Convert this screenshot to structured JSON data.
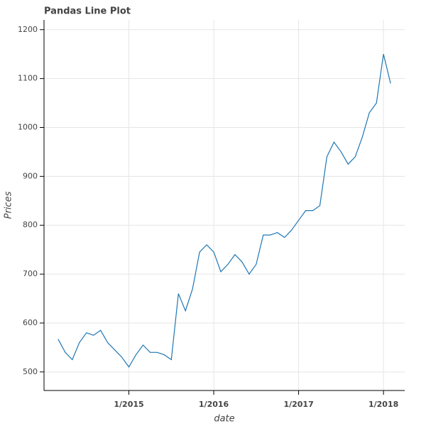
{
  "chart_data": {
    "type": "line",
    "title": "Pandas Line Plot",
    "x_label": "date",
    "y_label": "Prices",
    "x": [
      "2014-03",
      "2014-04",
      "2014-05",
      "2014-06",
      "2014-07",
      "2014-08",
      "2014-09",
      "2014-10",
      "2014-11",
      "2014-12",
      "2015-01",
      "2015-02",
      "2015-03",
      "2015-04",
      "2015-05",
      "2015-06",
      "2015-07",
      "2015-08",
      "2015-09",
      "2015-10",
      "2015-11",
      "2015-12",
      "2016-01",
      "2016-02",
      "2016-03",
      "2016-04",
      "2016-05",
      "2016-06",
      "2016-07",
      "2016-08",
      "2016-09",
      "2016-10",
      "2016-11",
      "2016-12",
      "2017-01",
      "2017-02",
      "2017-03",
      "2017-04",
      "2017-05",
      "2017-06",
      "2017-07",
      "2017-08",
      "2017-09",
      "2017-10",
      "2017-11",
      "2017-12",
      "2018-01",
      "2018-02"
    ],
    "values": [
      567,
      540,
      525,
      560,
      580,
      575,
      585,
      560,
      545,
      530,
      510,
      535,
      555,
      540,
      540,
      535,
      525,
      660,
      625,
      670,
      745,
      760,
      745,
      705,
      720,
      740,
      725,
      700,
      720,
      780,
      780,
      785,
      775,
      790,
      810,
      830,
      830,
      840,
      940,
      970,
      950,
      925,
      940,
      980,
      1030,
      1050,
      1150,
      1090
    ],
    "color": "#1f77b4",
    "xlim": [
      "2014-01",
      "2018-04"
    ],
    "xticks": [
      {
        "value": "2015-01",
        "label": "1/2015"
      },
      {
        "value": "2016-01",
        "label": "1/2016"
      },
      {
        "value": "2017-01",
        "label": "1/2017"
      },
      {
        "value": "2018-01",
        "label": "1/2018"
      }
    ],
    "ylim": [
      462,
      1220
    ],
    "yticks": [
      500,
      600,
      700,
      800,
      900,
      1000,
      1100,
      1200
    ],
    "grid": true
  }
}
